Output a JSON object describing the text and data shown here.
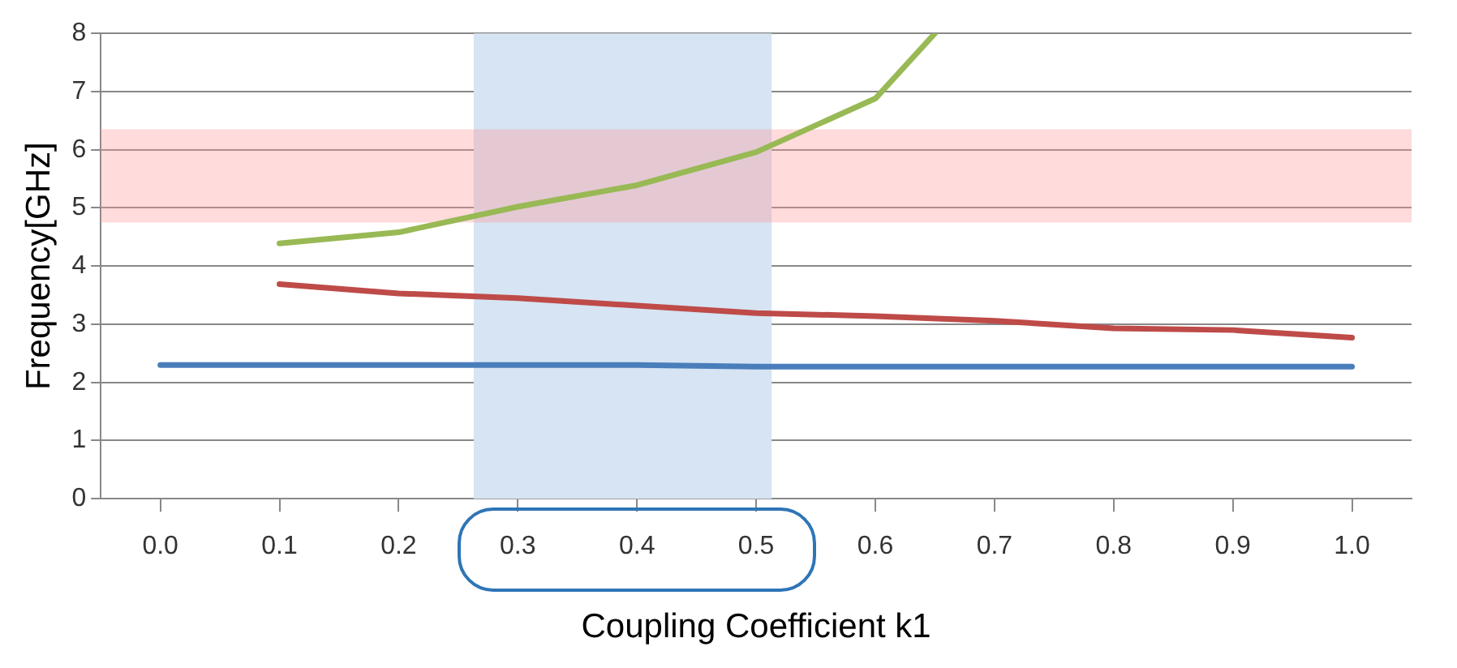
{
  "chart_data": {
    "type": "line",
    "xlabel": "Coupling Coefficient k1",
    "ylabel": "Frequency[GHz]",
    "x": [
      0.0,
      0.1,
      0.2,
      0.3,
      0.4,
      0.5,
      0.6,
      0.7,
      0.8,
      0.9,
      1.0
    ],
    "series": [
      {
        "color": "#4a7ebb",
        "values": [
          2.3,
          2.3,
          2.3,
          2.3,
          2.3,
          2.27,
          2.27,
          2.27,
          2.27,
          2.27,
          2.27
        ]
      },
      {
        "color": "#be4b48",
        "values": [
          null,
          3.69,
          3.53,
          3.45,
          3.32,
          3.19,
          3.14,
          3.06,
          2.93,
          2.9,
          2.77
        ]
      },
      {
        "color": "#98b954",
        "x": [
          0.1,
          0.2,
          0.3,
          0.4,
          0.5,
          0.6,
          0.65
        ],
        "values": [
          4.39,
          4.58,
          5.02,
          5.39,
          5.96,
          6.88,
          8
        ]
      }
    ],
    "xlim": [
      -0.05,
      1.05
    ],
    "xticks": [
      {
        "value": 0,
        "label": "0.0"
      },
      0.1,
      0.2,
      0.3,
      0.4,
      0.5,
      0.6,
      0.7,
      0.8,
      0.9,
      {
        "value": 1,
        "label": "1.0"
      }
    ],
    "ylim": [
      0,
      8
    ],
    "yticks": [
      0,
      1,
      2,
      3,
      4,
      5,
      6,
      7,
      8
    ],
    "bands": [
      {
        "axis": "y",
        "from": 4.75,
        "to": 6.35,
        "color": "#ff9999"
      },
      {
        "axis": "x",
        "from": 0.263,
        "to": 0.513,
        "color": "#d6e4f3"
      }
    ],
    "grid": "y",
    "legend": false,
    "marker": "none",
    "line_style": "solid"
  }
}
